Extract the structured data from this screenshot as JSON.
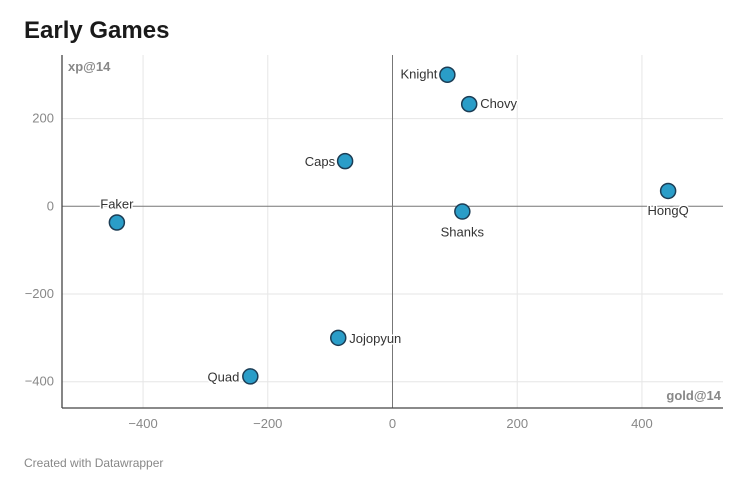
{
  "chart_data": {
    "type": "scatter",
    "title": "Early Games",
    "xlabel": "gold@14",
    "ylabel": "xp@14",
    "xlim": [
      -530,
      530
    ],
    "ylim": [
      -460,
      345
    ],
    "xticks": [
      -400,
      -200,
      0,
      200,
      400
    ],
    "yticks": [
      200,
      0,
      -200,
      -400
    ],
    "grid": true,
    "point_color": "#2a9dc8",
    "point_stroke": "#1c3d55",
    "points": [
      {
        "label": "Knight",
        "x": 88,
        "y": 300
      },
      {
        "label": "Chovy",
        "x": 123,
        "y": 233
      },
      {
        "label": "Caps",
        "x": -76,
        "y": 103
      },
      {
        "label": "HongQ",
        "x": 442,
        "y": 35
      },
      {
        "label": "Shanks",
        "x": 112,
        "y": -12
      },
      {
        "label": "Faker",
        "x": -442,
        "y": -37
      },
      {
        "label": "Jojopyun",
        "x": -87,
        "y": -300
      },
      {
        "label": "Quad",
        "x": -228,
        "y": -388
      }
    ]
  },
  "credit": "Created with Datawrapper"
}
